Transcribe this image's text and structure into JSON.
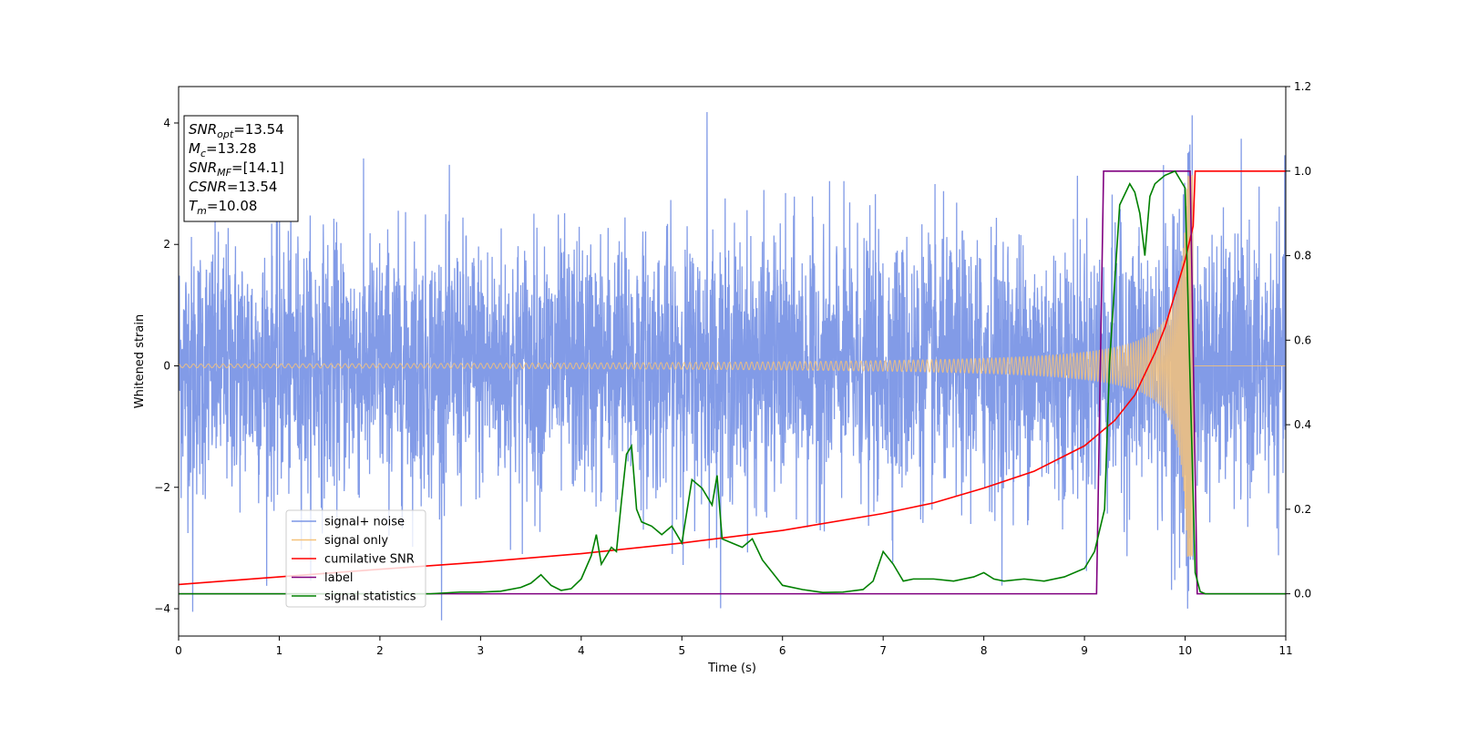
{
  "chart_data": {
    "type": "line",
    "xlabel": "Time (s)",
    "ylabel": "Whitened strain",
    "xlim": [
      0,
      11
    ],
    "ylim": [
      -4.45,
      4.6
    ],
    "y2lim": [
      -0.1,
      1.2
    ],
    "x_ticks": [
      "0",
      "1",
      "2",
      "3",
      "4",
      "5",
      "6",
      "7",
      "8",
      "9",
      "10",
      "11"
    ],
    "y_ticks": [
      "4",
      "2",
      "0",
      "−2",
      "−4"
    ],
    "y2_ticks": [
      "1.2",
      "1.0",
      "0.8",
      "0.6",
      "0.4",
      "0.2",
      "0.0"
    ],
    "legend_position": "lower-left",
    "grid": false,
    "info_box": [
      {
        "name": "SNR",
        "sub": "opt",
        "value": "=13.54"
      },
      {
        "name": "M",
        "sub": "c",
        "value": "=13.28"
      },
      {
        "name": "SNR",
        "sub": "MF",
        "value": "=[14.1]"
      },
      {
        "name": "CSNR",
        "sub": "",
        "value": "=13.54"
      },
      {
        "name": "T",
        "sub": "m",
        "value": "=10.08"
      }
    ],
    "series": [
      {
        "name": "signal+ noise",
        "color": "#7b96e6",
        "axis": "left",
        "description_noise_sigma": 1.0,
        "peak_value": 4.18,
        "trough_value": -4.05,
        "duration": 11
      },
      {
        "name": "signal only",
        "color": "#f5c27a",
        "axis": "left",
        "chirp": {
          "t_merger": 10.08,
          "amp_start": 0.03,
          "amp_merger": 3.15,
          "cycles_visible_start_hz": 7
        }
      },
      {
        "name": "cumilative SNR",
        "color": "#ff0000",
        "axis": "right",
        "x": [
          0,
          1,
          2,
          3,
          4,
          5,
          6,
          7,
          7.5,
          8,
          8.5,
          9,
          9.3,
          9.5,
          9.7,
          9.8,
          9.9,
          10.0,
          10.05,
          10.08,
          10.1,
          11
        ],
        "y": [
          0.022,
          0.04,
          0.058,
          0.075,
          0.095,
          0.12,
          0.15,
          0.19,
          0.215,
          0.25,
          0.29,
          0.35,
          0.41,
          0.47,
          0.57,
          0.63,
          0.71,
          0.79,
          0.84,
          0.87,
          1.0,
          1.0
        ]
      },
      {
        "name": "label",
        "color": "#800080",
        "axis": "right",
        "x": [
          0,
          9.12,
          9.19,
          10.05,
          10.12,
          11
        ],
        "y": [
          0,
          0,
          1.0,
          1.0,
          0,
          0
        ]
      },
      {
        "name": "signal statistics",
        "color": "#008000",
        "axis": "right",
        "x": [
          0,
          0.5,
          1,
          1.5,
          2,
          2.5,
          2.8,
          3,
          3.2,
          3.4,
          3.5,
          3.6,
          3.7,
          3.8,
          3.9,
          4.0,
          4.1,
          4.15,
          4.2,
          4.3,
          4.35,
          4.4,
          4.45,
          4.5,
          4.55,
          4.6,
          4.7,
          4.75,
          4.8,
          4.9,
          5.0,
          5.1,
          5.2,
          5.3,
          5.35,
          5.4,
          5.5,
          5.6,
          5.7,
          5.8,
          5.9,
          6.0,
          6.2,
          6.4,
          6.6,
          6.8,
          6.9,
          7.0,
          7.1,
          7.2,
          7.3,
          7.5,
          7.7,
          7.9,
          8.0,
          8.1,
          8.2,
          8.4,
          8.6,
          8.8,
          9.0,
          9.1,
          9.2,
          9.25,
          9.35,
          9.45,
          9.5,
          9.55,
          9.6,
          9.65,
          9.7,
          9.75,
          9.8,
          9.9,
          10.0,
          10.05,
          10.1,
          10.15,
          10.2,
          11
        ],
        "y": [
          0.0,
          0.0,
          0.0,
          0.0,
          0.0,
          0.0,
          0.004,
          0.004,
          0.006,
          0.015,
          0.025,
          0.045,
          0.02,
          0.008,
          0.012,
          0.035,
          0.09,
          0.14,
          0.07,
          0.11,
          0.1,
          0.22,
          0.33,
          0.35,
          0.2,
          0.17,
          0.16,
          0.15,
          0.14,
          0.16,
          0.12,
          0.27,
          0.25,
          0.21,
          0.28,
          0.13,
          0.12,
          0.11,
          0.13,
          0.08,
          0.05,
          0.02,
          0.01,
          0.003,
          0.004,
          0.01,
          0.03,
          0.1,
          0.07,
          0.03,
          0.035,
          0.035,
          0.03,
          0.04,
          0.05,
          0.035,
          0.03,
          0.035,
          0.03,
          0.04,
          0.06,
          0.1,
          0.2,
          0.55,
          0.92,
          0.97,
          0.95,
          0.9,
          0.8,
          0.94,
          0.97,
          0.98,
          0.99,
          1.0,
          0.96,
          0.5,
          0.05,
          0.005,
          0.0,
          0.0
        ]
      }
    ]
  }
}
